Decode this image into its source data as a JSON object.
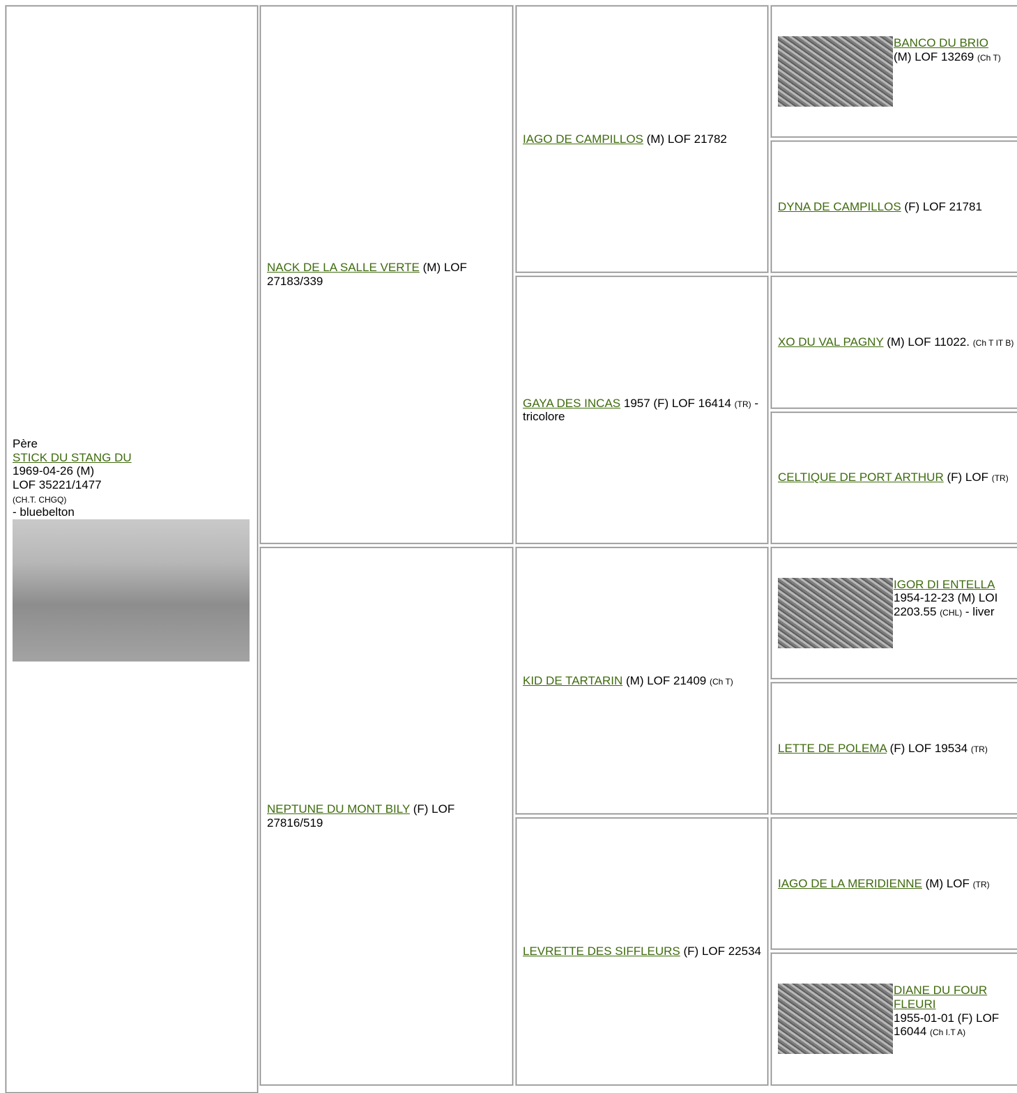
{
  "sire": {
    "label": "Père",
    "name": "STICK DU STANG DU",
    "born": "1969-04-26 (M)",
    "registry": "LOF 35221/1477",
    "titles": "(CH.T. CHGQ)",
    "color": "- bluebelton"
  },
  "generation2": [
    {
      "name": "NACK DE LA SALLE VERTE",
      "info": "(M) LOF 27183/339"
    },
    {
      "name": "NEPTUNE DU MONT BILY",
      "info": "(F) LOF 27816/519"
    }
  ],
  "generation3": [
    {
      "name": "IAGO DE CAMPILLOS",
      "info": "(M) LOF 21782"
    },
    {
      "name": "GAYA DES INCAS",
      "info": "1957 (F) LOF 16414",
      "small": "(TR)",
      "after": "- tricolore"
    },
    {
      "name": "KID DE TARTARIN",
      "info": "(M) LOF 21409",
      "small": "(Ch T)"
    },
    {
      "name": "LEVRETTE DES SIFFLEURS",
      "info": "(F) LOF 22534"
    }
  ],
  "generation4": [
    {
      "name": "BANCO DU BRIO",
      "info": "(M) LOF 13269",
      "small": "(Ch T)",
      "photo": true
    },
    {
      "name": "DYNA DE CAMPILLOS",
      "info": "(F) LOF 21781"
    },
    {
      "name": "XO DU VAL PAGNY",
      "info": "(M) LOF 11022.",
      "small": "(Ch T IT B)"
    },
    {
      "name": "CELTIQUE DE PORT ARTHUR",
      "info": "(F) LOF",
      "small": "(TR)"
    },
    {
      "name": "IGOR DI ENTELLA",
      "info": "1954-12-23 (M) LOI 2203.55",
      "small": "(CHL)",
      "after": "- liver",
      "photo": true
    },
    {
      "name": "LETTE DE POLEMA",
      "info": "(F) LOF 19534",
      "small": "(TR)"
    },
    {
      "name": "IAGO DE LA MERIDIENNE",
      "info": "(M) LOF",
      "small": "(TR)"
    },
    {
      "name": "DIANE DU FOUR FLEURI",
      "info": "1955-01-01 (F) LOF 16044",
      "small": "(Ch I.T A)",
      "photo": true
    }
  ]
}
